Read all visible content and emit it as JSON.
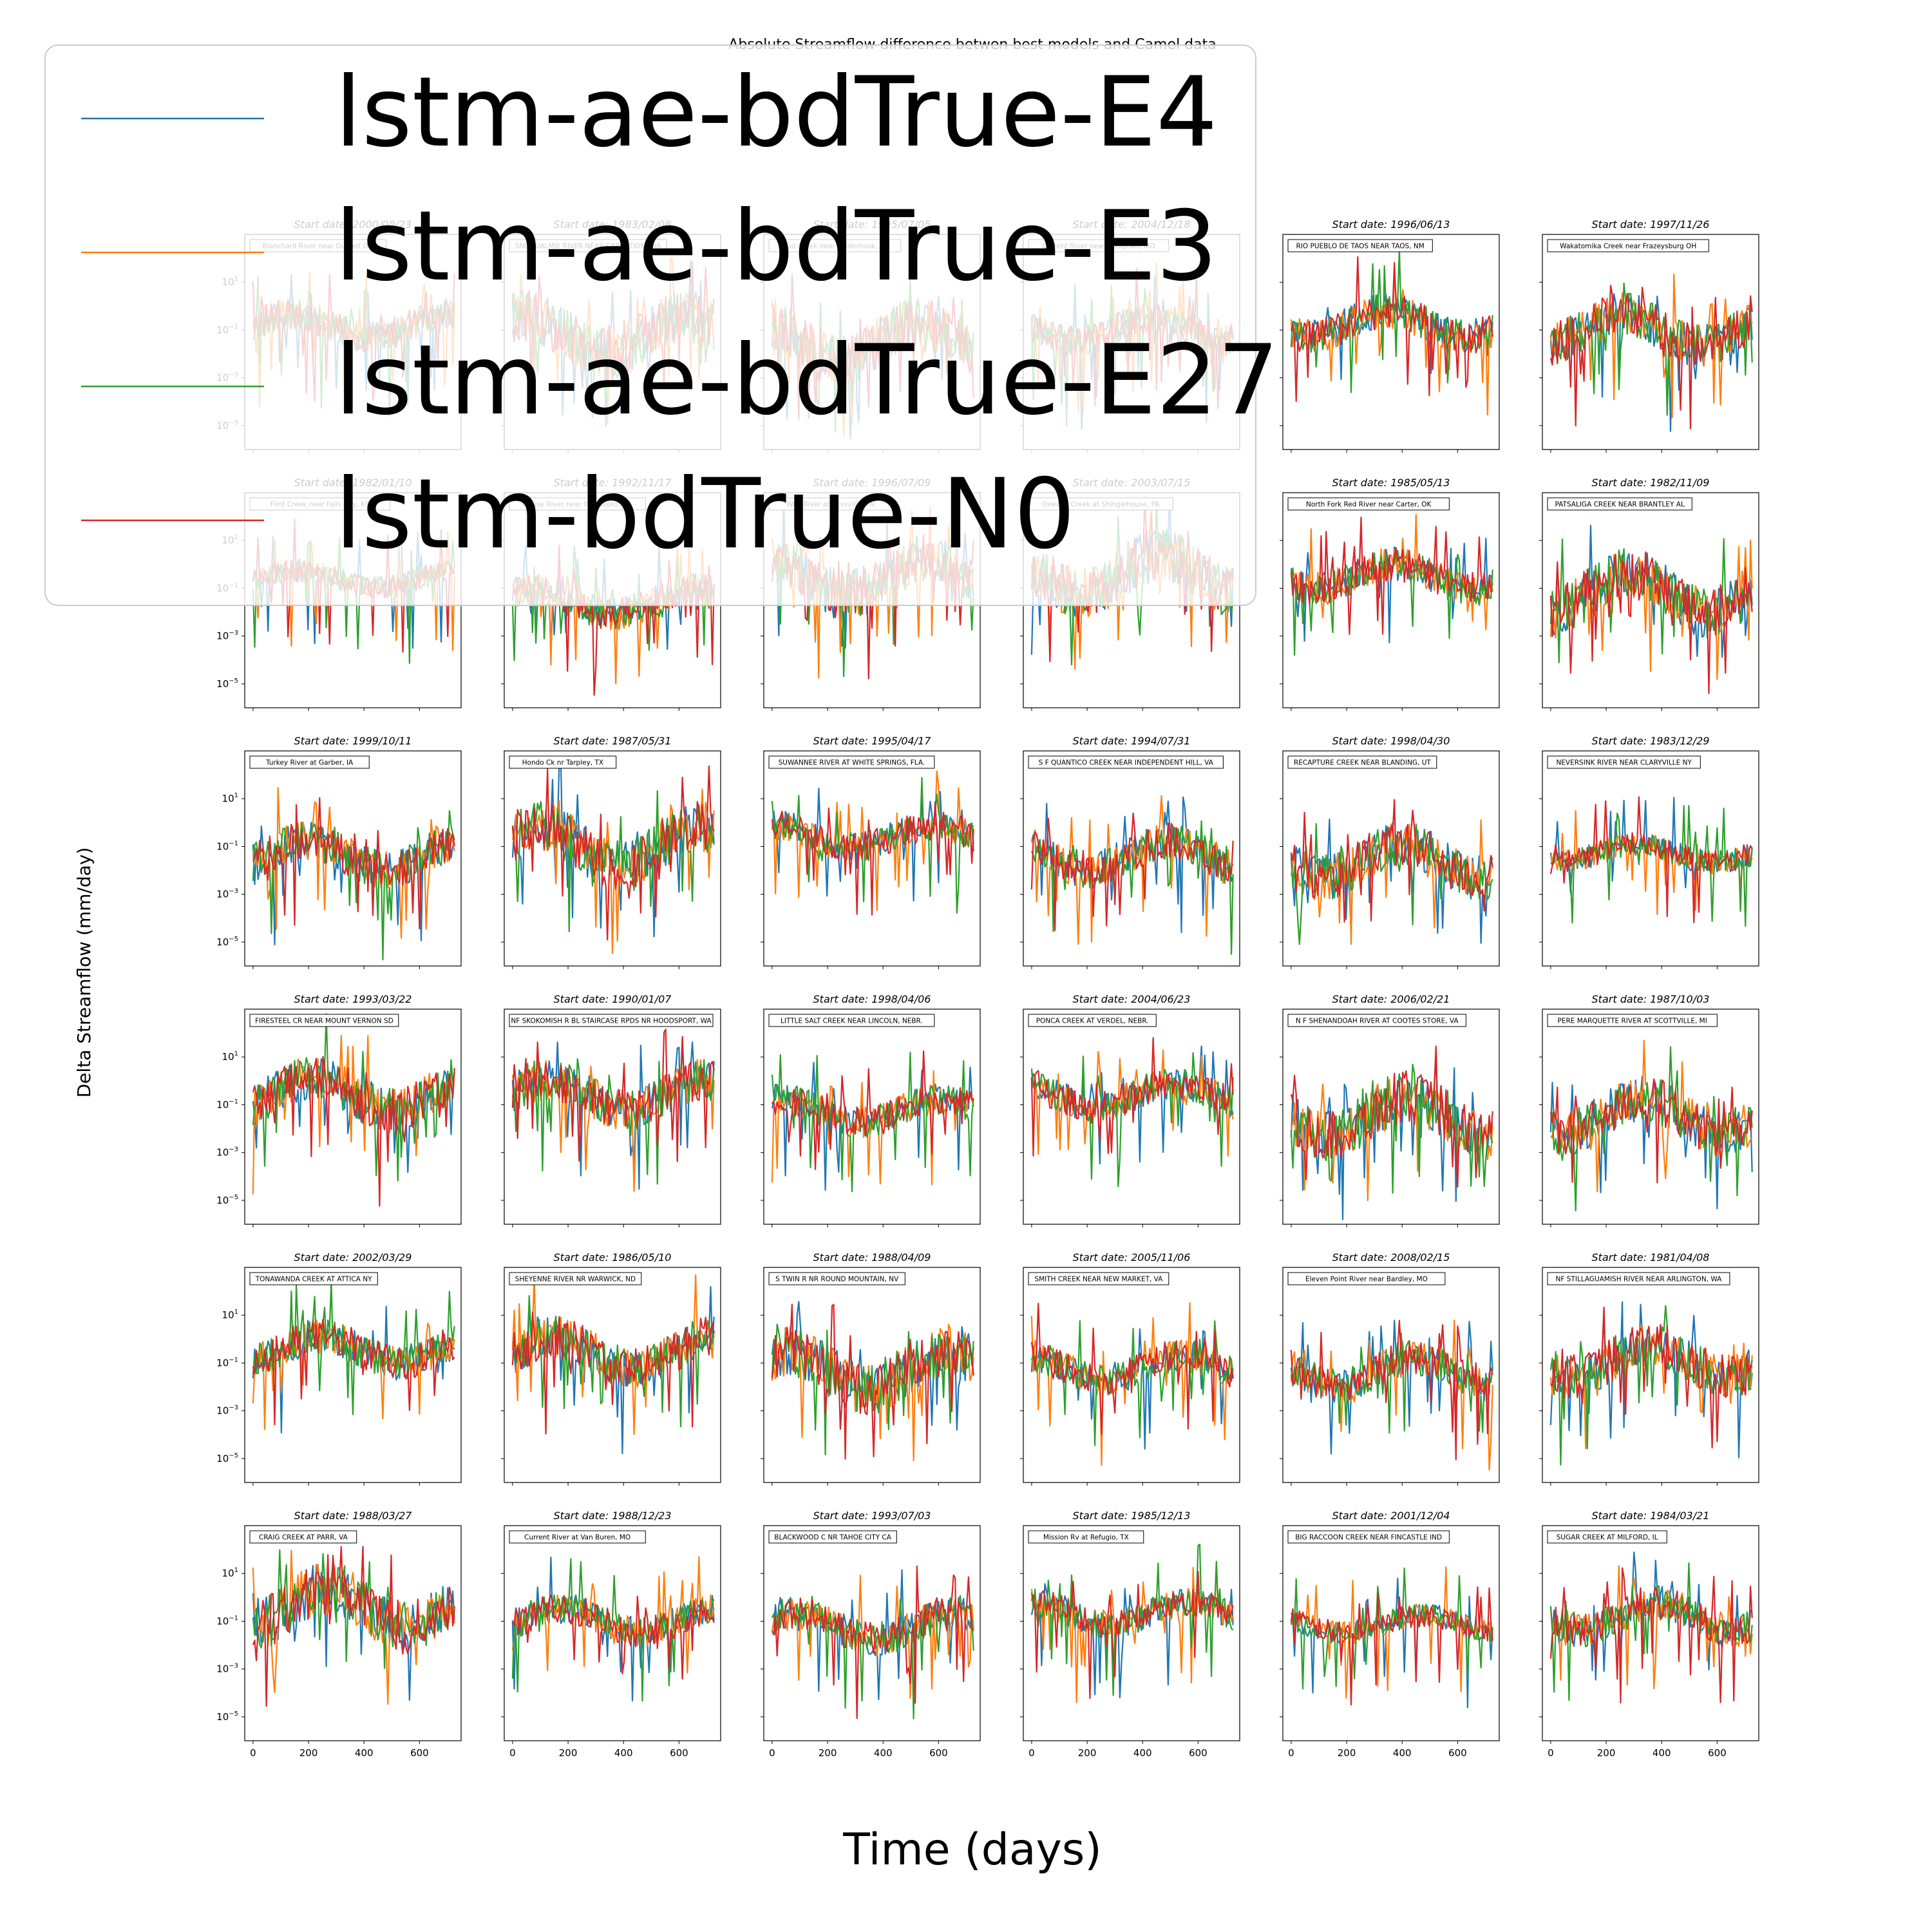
{
  "figure": {
    "suptitle": "Absolute Streamflow difference betwen best models and Camel data",
    "xlabel": "Time (days)",
    "ylabel": "Delta Streamflow (mm/day)"
  },
  "chart_data": {
    "type": "line",
    "yscale": "log",
    "ylim": [
      1e-06,
      1000
    ],
    "xlim": [
      -30,
      750
    ],
    "xticks": [
      0,
      200,
      400,
      600
    ],
    "yticks": [
      10,
      0.1,
      0.001,
      1e-05
    ],
    "ytick_labels": [
      {
        "base": "10",
        "exp": "1"
      },
      {
        "base": "10",
        "exp": "−1"
      },
      {
        "base": "10",
        "exp": "−3"
      },
      {
        "base": "10",
        "exp": "−5"
      }
    ],
    "series": [
      {
        "name": "lstm-ae-bdTrue-E4",
        "color": "#1f77b4"
      },
      {
        "name": "lstm-ae-bdTrue-E3",
        "color": "#ff7f0e"
      },
      {
        "name": "lstm-ae-bdTrue-E27",
        "color": "#2ca02c"
      },
      {
        "name": "lstm-bdTrue-N0",
        "color": "#d62728"
      }
    ],
    "legend": {
      "placement": "upper-left",
      "frame": true
    },
    "panels": [
      {
        "start_date": "Start date: 2000/08/23",
        "station": "Blanchard River near Dupont OH"
      },
      {
        "start_date": "Start date: 1983/02/08",
        "station": "SNOQUALMIE RIVER NEAR CARNATION, WA"
      },
      {
        "start_date": "Start date: 1995/07/05",
        "station": "Mud Creek near Kinderhook, SC"
      },
      {
        "start_date": "Start date: 2004/12/18",
        "station": "Current River near Doniphan, MO"
      },
      {
        "start_date": "Start date: 1996/06/13",
        "station": "RIO PUEBLO DE TAOS NEAR TAOS, NM"
      },
      {
        "start_date": "Start date: 1997/11/26",
        "station": "Wakatomika Creek near Frazeysburg OH"
      },
      {
        "start_date": "Start date: 1982/01/10",
        "station": "Flint Creek near Falls City, KS"
      },
      {
        "start_date": "Start date: 1992/11/17",
        "station": "Neuse River near Goldsboro, NC"
      },
      {
        "start_date": "Start date: 1996/07/09",
        "station": "Wolf River at Rossville, TN"
      },
      {
        "start_date": "Start date: 2003/07/15",
        "station": "Oswayo Creek at Shinglehouse, PA"
      },
      {
        "start_date": "Start date: 1985/05/13",
        "station": "North Fork Red River near Carter, OK"
      },
      {
        "start_date": "Start date: 1982/11/09",
        "station": "PATSALIGA CREEK NEAR BRANTLEY AL"
      },
      {
        "start_date": "Start date: 1999/10/11",
        "station": "Turkey River at Garber, IA"
      },
      {
        "start_date": "Start date: 1987/05/31",
        "station": "Hondo Ck nr Tarpley, TX"
      },
      {
        "start_date": "Start date: 1995/04/17",
        "station": "SUWANNEE RIVER AT WHITE SPRINGS, FLA."
      },
      {
        "start_date": "Start date: 1994/07/31",
        "station": "S F QUANTICO CREEK NEAR INDEPENDENT HILL, VA"
      },
      {
        "start_date": "Start date: 1998/04/30",
        "station": "RECAPTURE CREEK NEAR BLANDING, UT"
      },
      {
        "start_date": "Start date: 1983/12/29",
        "station": "NEVERSINK RIVER NEAR CLARYVILLE NY"
      },
      {
        "start_date": "Start date: 1993/03/22",
        "station": "FIRESTEEL CR NEAR MOUNT VERNON SD"
      },
      {
        "start_date": "Start date: 1990/01/07",
        "station": "NF SKOKOMISH R BL STAIRCASE RPDS NR HOODSPORT, WA"
      },
      {
        "start_date": "Start date: 1998/04/06",
        "station": "LITTLE SALT CREEK NEAR LINCOLN, NEBR."
      },
      {
        "start_date": "Start date: 2004/06/23",
        "station": "PONCA CREEK AT VERDEL, NEBR."
      },
      {
        "start_date": "Start date: 2006/02/21",
        "station": "N F SHENANDOAH RIVER AT COOTES STORE, VA"
      },
      {
        "start_date": "Start date: 1987/10/03",
        "station": "PERE MARQUETTE RIVER AT SCOTTVILLE, MI"
      },
      {
        "start_date": "Start date: 2002/03/29",
        "station": "TONAWANDA CREEK AT ATTICA NY"
      },
      {
        "start_date": "Start date: 1986/05/10",
        "station": "SHEYENNE RIVER NR WARWICK, ND"
      },
      {
        "start_date": "Start date: 1988/04/09",
        "station": "S TWIN R NR ROUND MOUNTAIN, NV"
      },
      {
        "start_date": "Start date: 2005/11/06",
        "station": "SMITH CREEK NEAR NEW MARKET, VA"
      },
      {
        "start_date": "Start date: 2008/02/15",
        "station": "Eleven Point River near Bardley, MO"
      },
      {
        "start_date": "Start date: 1981/04/08",
        "station": "NF STILLAGUAMISH RIVER NEAR ARLINGTON, WA"
      },
      {
        "start_date": "Start date: 1988/03/27",
        "station": "CRAIG CREEK AT PARR, VA"
      },
      {
        "start_date": "Start date: 1988/12/23",
        "station": "Current River at Van Buren, MO"
      },
      {
        "start_date": "Start date: 1993/07/03",
        "station": "BLACKWOOD C NR TAHOE CITY CA"
      },
      {
        "start_date": "Start date: 1985/12/13",
        "station": "Mission Rv at Refugio, TX"
      },
      {
        "start_date": "Start date: 2001/12/04",
        "station": "BIG RACCOON CREEK NEAR FINCASTLE IND"
      },
      {
        "start_date": "Start date: 1984/03/21",
        "station": "SUGAR CREEK AT MILFORD, IL"
      }
    ]
  }
}
